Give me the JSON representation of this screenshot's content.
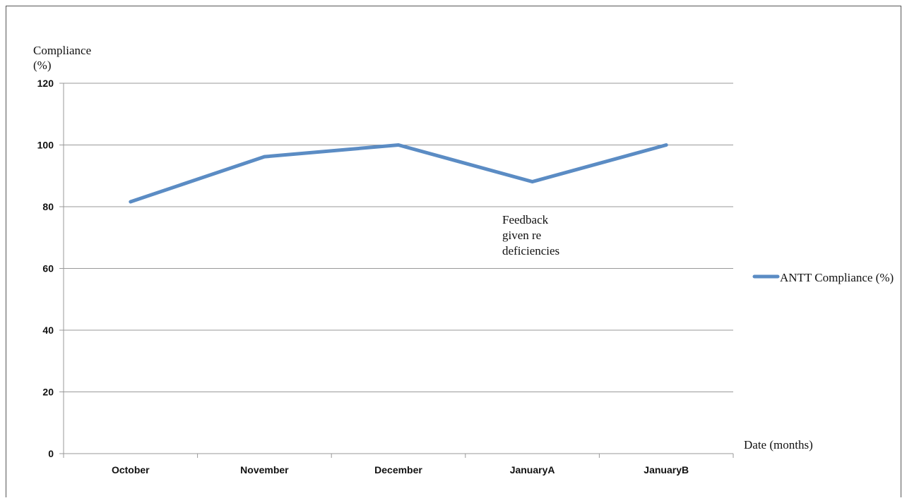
{
  "chart_data": {
    "type": "line",
    "categories": [
      "October",
      "November",
      "December",
      "JanuaryA",
      "JanuaryB"
    ],
    "series": [
      {
        "name": "ANTT Compliance (%)",
        "values": [
          81.6,
          96.2,
          100,
          88.1,
          100
        ],
        "color": "#5b8cc4"
      }
    ],
    "ylim": [
      0,
      120
    ],
    "yticks": [
      0,
      20,
      40,
      60,
      80,
      100,
      120
    ],
    "ylabel_line1": "Compliance",
    "ylabel_line2": "(%)",
    "xlabel": "Date (months)",
    "annotation": [
      "Feedback",
      "given re",
      "deficiencies"
    ],
    "grid": true,
    "legend_position": "right",
    "colors": {
      "axis": "#999999",
      "grid": "#999999",
      "text": "#111111"
    }
  }
}
